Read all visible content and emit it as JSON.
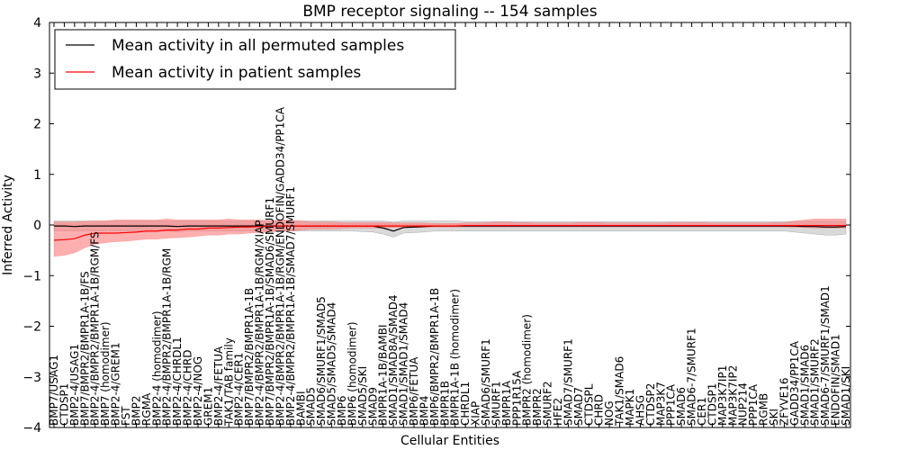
{
  "chart_data": {
    "type": "line",
    "title": "BMP receptor signaling -- 154 samples",
    "xlabel": "Cellular Entities",
    "ylabel": "Inferred Activity",
    "ylim": [
      -4,
      4
    ],
    "yticks": [
      "4",
      "3",
      "2",
      "1",
      "0",
      "−1",
      "−2",
      "−3",
      "−4"
    ],
    "ytick_values": [
      4,
      3,
      2,
      1,
      0,
      -1,
      -2,
      -3,
      -4
    ],
    "legend_position": "top-left",
    "categories": [
      "BMP7/USAG1",
      "CTDSP1",
      "BMP2-4/USAG1",
      "BMP7/BMPR2/BMPR1A-1B/FS",
      "BMP2-4/BMPR2/BMPR1A-1B/RGM/FS",
      "BMP7 (homodimer)",
      "BMP2-4/GREM1",
      "FST",
      "BMP2",
      "RGMA",
      "BMP2-4 (homodimer)",
      "BMP2-4/BMPR2/BMPR1A-1B/RGM",
      "BMP2-4/CHRDL1",
      "BMP2-4/CHRD",
      "BMP2-4/NOG",
      "GREM1",
      "BMP2-4/FETUA",
      "TAK1/TAB family",
      "BMP2-4/CER1",
      "BMP7/BMPR2/BMPR1A-1B",
      "BMP2-4/BMPR2/BMPR1A-1B/RGM/XIAP",
      "BMP7/BMPR2/BMPR1A-1B/SMAD6/SMURF1",
      "BMP2-4/BMPR2/BMPR1A-1B/RGM/ENDOFIN/GADD34/PP1CA",
      "BMP2-4/BMPR2/BMPR1A-1B/SMAD7/SMURF1",
      "BAMBI",
      "SMAD5",
      "SMAD6/SMURF1/SMAD5",
      "SMAD5/SMAD5/SMAD4",
      "BMP6",
      "BMP6 (homodimer)",
      "SMAD5/SKI",
      "SMAD9",
      "BMPR1A-1B/BAMBI",
      "SMAD1/SMAD8A/SMAD4",
      "SMAD1/SMAD1/SMAD4",
      "BMP6/FETUA",
      "BMP4",
      "BMP6/BMPR2/BMPR1A-1B",
      "BMPR1B",
      "BMPR1A-1B (homodimer)",
      "CHRDL1",
      "XIAP",
      "SMAD6/SMURF1",
      "SMURF1",
      "BMPR1A",
      "PPP1R15A",
      "BMPR2 (homodimer)",
      "BMPR2",
      "SMURF2",
      "HFE2",
      "SMAD7/SMURF1",
      "SMAD7",
      "CTDSPL",
      "CHRD",
      "NOG",
      "TAK1/SMAD6",
      "MAPK1",
      "AHSG",
      "CTDSP2",
      "MAP3K7",
      "PPP1CA",
      "SMAD6",
      "SMAD6-7/SMURF1",
      "CER1",
      "CTDSP1",
      "MAP3K7IP1",
      "MAP3K7IP2",
      "NUP214",
      "PPP1CA",
      "RGMB",
      "SKI",
      "ZFYVE16",
      "GADD34/PP1CA",
      "SMAD1/SMAD6",
      "SMAD1/SMURF2",
      "SMAD6-7/SMURF1/SMAD1",
      "ENDOFIN/SMAD1",
      "SMAD1/SKI"
    ],
    "series": [
      {
        "name": "Mean activity in all permuted samples",
        "color": "#000000",
        "band_color": "#cccccc",
        "values": [
          -0.02,
          -0.02,
          -0.03,
          -0.02,
          -0.02,
          -0.02,
          -0.02,
          -0.02,
          -0.02,
          -0.02,
          -0.02,
          -0.02,
          -0.03,
          -0.02,
          -0.02,
          -0.02,
          -0.02,
          -0.02,
          -0.02,
          -0.02,
          -0.02,
          -0.02,
          -0.02,
          -0.02,
          -0.02,
          -0.02,
          -0.02,
          -0.02,
          -0.02,
          -0.02,
          -0.02,
          -0.02,
          -0.06,
          -0.12,
          -0.05,
          -0.04,
          -0.03,
          -0.02,
          -0.02,
          -0.02,
          -0.02,
          -0.02,
          -0.02,
          -0.02,
          -0.02,
          -0.02,
          -0.02,
          -0.02,
          -0.02,
          -0.02,
          -0.02,
          -0.02,
          -0.02,
          -0.02,
          -0.02,
          -0.02,
          -0.02,
          -0.02,
          -0.02,
          -0.02,
          -0.02,
          -0.02,
          -0.02,
          -0.02,
          -0.02,
          -0.02,
          -0.02,
          -0.02,
          -0.02,
          -0.02,
          -0.02,
          -0.02,
          -0.02,
          -0.03,
          -0.03,
          -0.04,
          -0.04,
          -0.03
        ],
        "upper": [
          0.08,
          0.08,
          0.08,
          0.08,
          0.08,
          0.08,
          0.08,
          0.08,
          0.08,
          0.08,
          0.08,
          0.08,
          0.08,
          0.08,
          0.08,
          0.08,
          0.08,
          0.08,
          0.08,
          0.08,
          0.08,
          0.08,
          0.08,
          0.08,
          0.08,
          0.08,
          0.08,
          0.08,
          0.08,
          0.08,
          0.08,
          0.08,
          0.08,
          0.06,
          0.08,
          0.08,
          0.08,
          0.08,
          0.08,
          0.08,
          0.07,
          0.07,
          0.07,
          0.07,
          0.07,
          0.07,
          0.07,
          0.07,
          0.07,
          0.07,
          0.07,
          0.07,
          0.07,
          0.07,
          0.07,
          0.07,
          0.07,
          0.07,
          0.07,
          0.07,
          0.07,
          0.07,
          0.07,
          0.07,
          0.07,
          0.07,
          0.07,
          0.07,
          0.07,
          0.07,
          0.07,
          0.07,
          0.07,
          0.07,
          0.07,
          0.07,
          0.07,
          0.07
        ],
        "lower": [
          -0.12,
          -0.12,
          -0.12,
          -0.12,
          -0.12,
          -0.12,
          -0.12,
          -0.12,
          -0.12,
          -0.12,
          -0.12,
          -0.12,
          -0.14,
          -0.12,
          -0.12,
          -0.12,
          -0.12,
          -0.12,
          -0.12,
          -0.12,
          -0.12,
          -0.12,
          -0.12,
          -0.12,
          -0.12,
          -0.12,
          -0.12,
          -0.12,
          -0.12,
          -0.12,
          -0.13,
          -0.14,
          -0.18,
          -0.24,
          -0.16,
          -0.15,
          -0.14,
          -0.12,
          -0.12,
          -0.12,
          -0.12,
          -0.12,
          -0.12,
          -0.12,
          -0.12,
          -0.12,
          -0.12,
          -0.12,
          -0.12,
          -0.12,
          -0.12,
          -0.12,
          -0.12,
          -0.12,
          -0.12,
          -0.12,
          -0.12,
          -0.12,
          -0.12,
          -0.12,
          -0.12,
          -0.12,
          -0.12,
          -0.12,
          -0.12,
          -0.12,
          -0.12,
          -0.12,
          -0.12,
          -0.12,
          -0.12,
          -0.12,
          -0.14,
          -0.16,
          -0.18,
          -0.2,
          -0.2,
          -0.18
        ]
      },
      {
        "name": "Mean activity in patient samples",
        "color": "#ff0000",
        "band_color": "#ff7a7a",
        "values": [
          -0.3,
          -0.29,
          -0.27,
          -0.2,
          -0.16,
          -0.16,
          -0.16,
          -0.15,
          -0.14,
          -0.12,
          -0.12,
          -0.1,
          -0.1,
          -0.08,
          -0.08,
          -0.06,
          -0.06,
          -0.05,
          -0.04,
          -0.04,
          -0.03,
          -0.03,
          -0.02,
          -0.02,
          -0.02,
          -0.02,
          -0.02,
          -0.02,
          -0.02,
          -0.02,
          -0.02,
          -0.02,
          -0.02,
          -0.02,
          -0.02,
          -0.02,
          -0.02,
          -0.02,
          -0.02,
          -0.02,
          -0.01,
          -0.01,
          -0.01,
          -0.01,
          -0.01,
          -0.01,
          -0.01,
          -0.01,
          -0.01,
          -0.01,
          -0.01,
          -0.01,
          -0.01,
          -0.01,
          -0.01,
          -0.01,
          -0.01,
          -0.01,
          -0.01,
          -0.01,
          -0.01,
          -0.01,
          -0.01,
          -0.01,
          -0.01,
          -0.01,
          -0.01,
          -0.01,
          -0.01,
          -0.01,
          -0.01,
          -0.01,
          -0.01,
          -0.01,
          -0.01,
          -0.01,
          -0.01,
          -0.01
        ],
        "upper": [
          0.06,
          0.06,
          0.06,
          0.07,
          0.08,
          0.08,
          0.1,
          0.1,
          0.1,
          0.1,
          0.1,
          0.12,
          0.1,
          0.1,
          0.1,
          0.1,
          0.1,
          0.12,
          0.1,
          0.1,
          0.1,
          0.08,
          0.1,
          0.1,
          0.08,
          0.06,
          0.06,
          0.06,
          0.05,
          0.05,
          0.05,
          0.05,
          0.05,
          0.04,
          0.04,
          0.04,
          0.04,
          0.03,
          0.03,
          0.03,
          0.04,
          0.04,
          0.05,
          0.06,
          0.06,
          0.05,
          0.05,
          0.04,
          0.04,
          0.04,
          0.04,
          0.05,
          0.05,
          0.05,
          0.04,
          0.04,
          0.04,
          0.04,
          0.04,
          0.04,
          0.05,
          0.05,
          0.05,
          0.05,
          0.04,
          0.04,
          0.04,
          0.04,
          0.04,
          0.04,
          0.05,
          0.05,
          0.08,
          0.1,
          0.12,
          0.12,
          0.12,
          0.12
        ],
        "lower": [
          -0.62,
          -0.6,
          -0.55,
          -0.45,
          -0.38,
          -0.35,
          -0.33,
          -0.32,
          -0.3,
          -0.28,
          -0.28,
          -0.26,
          -0.25,
          -0.24,
          -0.22,
          -0.2,
          -0.2,
          -0.18,
          -0.18,
          -0.16,
          -0.15,
          -0.14,
          -0.12,
          -0.12,
          -0.1,
          -0.08,
          -0.08,
          -0.08,
          -0.07,
          -0.06,
          -0.06,
          -0.06,
          -0.06,
          -0.05,
          -0.05,
          -0.05,
          -0.05,
          -0.04,
          -0.04,
          -0.04,
          -0.04,
          -0.04,
          -0.04,
          -0.04,
          -0.04,
          -0.04,
          -0.04,
          -0.04,
          -0.04,
          -0.04,
          -0.04,
          -0.04,
          -0.04,
          -0.04,
          -0.04,
          -0.04,
          -0.04,
          -0.04,
          -0.04,
          -0.04,
          -0.04,
          -0.04,
          -0.04,
          -0.04,
          -0.04,
          -0.04,
          -0.04,
          -0.04,
          -0.04,
          -0.04,
          -0.04,
          -0.04,
          -0.05,
          -0.05,
          -0.06,
          -0.06,
          -0.06,
          -0.06
        ]
      }
    ]
  }
}
